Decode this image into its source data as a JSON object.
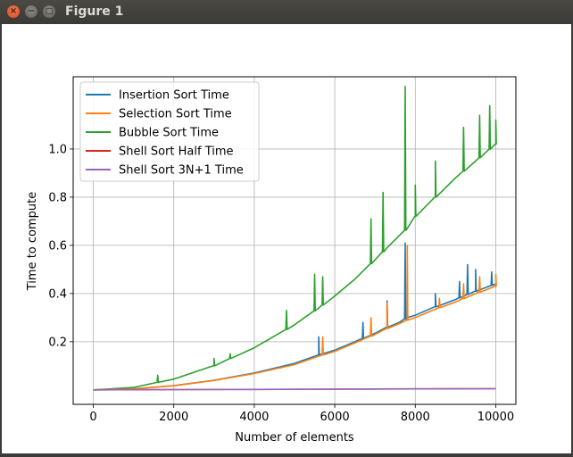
{
  "window": {
    "title": "Figure 1",
    "close_glyph": "×",
    "minimize_glyph": "−",
    "maximize_glyph": "□"
  },
  "chart_data": {
    "type": "line",
    "xlabel": "Number of elements",
    "ylabel": "Time to compute",
    "xlim": [
      -500,
      10500
    ],
    "ylim": [
      -0.06,
      1.3
    ],
    "xticks": [
      0,
      2000,
      4000,
      6000,
      8000,
      10000
    ],
    "xtick_labels": [
      "0",
      "2000",
      "4000",
      "6000",
      "8000",
      "10000"
    ],
    "yticks": [
      0.2,
      0.4,
      0.6,
      0.8,
      1.0
    ],
    "ytick_labels": [
      "0.2",
      "0.4",
      "0.6",
      "0.8",
      "1.0"
    ],
    "grid": true,
    "legend_position": "top-left",
    "series": [
      {
        "name": "Insertion Sort Time",
        "color": "#1f77b4",
        "x": [
          0,
          1000,
          2000,
          3000,
          4000,
          5000,
          5600,
          6000,
          6500,
          7000,
          7300,
          7600,
          7800,
          8000,
          8500,
          9000,
          9500,
          10000
        ],
        "y": [
          0.0,
          0.004,
          0.018,
          0.04,
          0.07,
          0.11,
          0.145,
          0.165,
          0.2,
          0.235,
          0.26,
          0.28,
          0.3,
          0.31,
          0.345,
          0.375,
          0.41,
          0.44
        ],
        "spikes": [
          [
            5600,
            0.22
          ],
          [
            6700,
            0.28
          ],
          [
            7300,
            0.37
          ],
          [
            7750,
            0.61
          ],
          [
            8500,
            0.4
          ],
          [
            9100,
            0.45
          ],
          [
            9300,
            0.52
          ],
          [
            9500,
            0.5
          ],
          [
            9900,
            0.49
          ]
        ]
      },
      {
        "name": "Selection Sort Time",
        "color": "#ff7f0e",
        "x": [
          0,
          1000,
          2000,
          3000,
          4000,
          5000,
          5600,
          6000,
          6500,
          7000,
          7300,
          7600,
          7800,
          8000,
          8500,
          9000,
          9500,
          10000
        ],
        "y": [
          0.0,
          0.004,
          0.017,
          0.039,
          0.068,
          0.105,
          0.14,
          0.16,
          0.195,
          0.23,
          0.255,
          0.275,
          0.29,
          0.3,
          0.335,
          0.365,
          0.4,
          0.43
        ],
        "spikes": [
          [
            5700,
            0.22
          ],
          [
            6900,
            0.3
          ],
          [
            7300,
            0.36
          ],
          [
            7800,
            0.6
          ],
          [
            8600,
            0.38
          ],
          [
            9200,
            0.44
          ],
          [
            9600,
            0.47
          ],
          [
            10000,
            0.48
          ]
        ]
      },
      {
        "name": "Bubble Sort Time",
        "color": "#2ca02c",
        "x": [
          0,
          1000,
          2000,
          3000,
          4000,
          5000,
          5600,
          6000,
          6500,
          7000,
          7300,
          7600,
          7800,
          8000,
          8500,
          9000,
          9500,
          10000
        ],
        "y": [
          0.0,
          0.01,
          0.045,
          0.1,
          0.175,
          0.27,
          0.34,
          0.39,
          0.46,
          0.54,
          0.59,
          0.64,
          0.67,
          0.72,
          0.8,
          0.88,
          0.95,
          1.02
        ],
        "spikes": [
          [
            1600,
            0.06
          ],
          [
            3000,
            0.13
          ],
          [
            3400,
            0.15
          ],
          [
            4800,
            0.33
          ],
          [
            5500,
            0.48
          ],
          [
            5700,
            0.47
          ],
          [
            6900,
            0.71
          ],
          [
            7200,
            0.82
          ],
          [
            7750,
            1.26
          ],
          [
            8000,
            0.85
          ],
          [
            8500,
            0.95
          ],
          [
            9200,
            1.09
          ],
          [
            9600,
            1.14
          ],
          [
            9850,
            1.18
          ],
          [
            10000,
            1.12
          ]
        ]
      },
      {
        "name": "Shell Sort Half Time",
        "color": "#d62728",
        "x": [
          0,
          2000,
          4000,
          6000,
          8000,
          10000
        ],
        "y": [
          0.0,
          0.001,
          0.002,
          0.003,
          0.004,
          0.005
        ],
        "spikes": []
      },
      {
        "name": "Shell Sort 3N+1 Time",
        "color": "#9467bd",
        "x": [
          0,
          2000,
          4000,
          6000,
          8000,
          10000
        ],
        "y": [
          0.0,
          0.001,
          0.002,
          0.003,
          0.004,
          0.005
        ],
        "spikes": []
      }
    ]
  }
}
